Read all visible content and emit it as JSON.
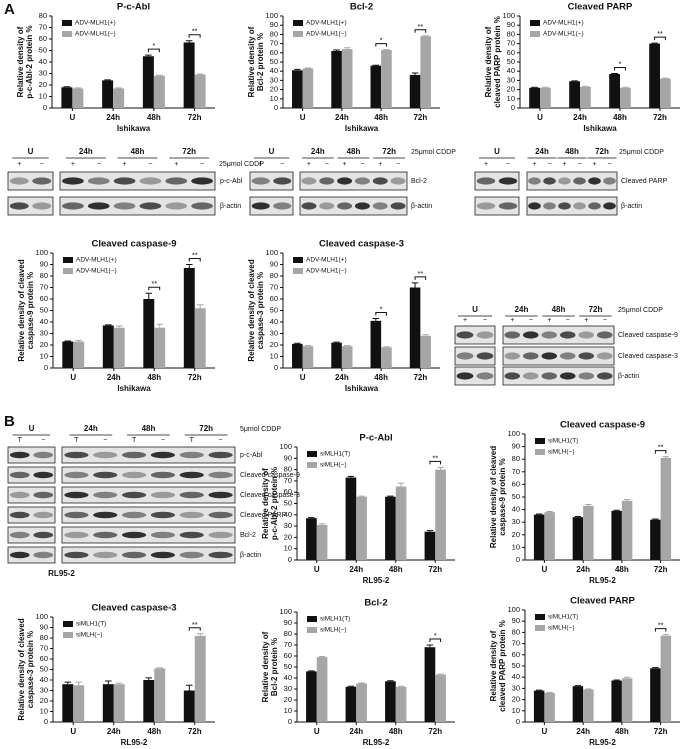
{
  "panels": [
    "A",
    "B"
  ],
  "chart_data": [
    {
      "type": "bar",
      "title": "P-c-Abl",
      "ylabel": [
        "Relative density of",
        "p-c-Abl-2 protein %"
      ],
      "xlabel": "Ishikawa",
      "categories": [
        "U",
        "24h",
        "48h",
        "72h"
      ],
      "legend": "upper left",
      "series": [
        {
          "name": "ADV-MLH1(+)",
          "color": "#111111",
          "values": [
            18,
            24,
            45,
            57
          ],
          "errors": [
            0.5,
            0.5,
            1,
            1.5
          ]
        },
        {
          "name": "ADV-MLH1(−)",
          "color": "#a6a6a6",
          "values": [
            17,
            17,
            28,
            29
          ],
          "errors": [
            0.5,
            0.5,
            0.5,
            0.5
          ]
        }
      ],
      "ylim": [
        0,
        80
      ],
      "yticks": [
        0,
        10,
        20,
        30,
        40,
        50,
        60,
        70,
        80
      ],
      "annotations": [
        {
          "x": "48h",
          "text": "*"
        },
        {
          "x": "72h",
          "text": "**"
        }
      ]
    },
    {
      "type": "bar",
      "title": "Bcl-2",
      "ylabel": [
        "Relative density of",
        "Bcl-2 protein %"
      ],
      "xlabel": "Ishikawa",
      "categories": [
        "U",
        "24h",
        "48h",
        "72h"
      ],
      "legend": "upper left",
      "series": [
        {
          "name": "ADV-MLH1(+)",
          "color": "#111111",
          "values": [
            41,
            62,
            46,
            36
          ],
          "errors": [
            1,
            1,
            0.5,
            2
          ]
        },
        {
          "name": "ADV-MLH1(−)",
          "color": "#a6a6a6",
          "values": [
            43,
            64,
            63,
            78
          ],
          "errors": [
            0.5,
            1.5,
            0.5,
            0.5
          ]
        }
      ],
      "ylim": [
        0,
        100
      ],
      "yticks": [
        0,
        10,
        20,
        30,
        40,
        50,
        60,
        70,
        80,
        90,
        100
      ],
      "annotations": [
        {
          "x": "48h",
          "text": "*"
        },
        {
          "x": "72h",
          "text": "**"
        }
      ]
    },
    {
      "type": "bar",
      "title": "Cleaved PARP",
      "ylabel": [
        "Relative density of",
        "cleaved PARP protein %"
      ],
      "xlabel": "Ishikawa",
      "categories": [
        "U",
        "24h",
        "48h",
        "72h"
      ],
      "legend": "upper left",
      "series": [
        {
          "name": "ADV-MLH1(+)",
          "color": "#111111",
          "values": [
            22,
            29,
            37,
            70
          ],
          "errors": [
            0.5,
            0.5,
            0.5,
            0.5
          ]
        },
        {
          "name": "ADV-MLH1(−)",
          "color": "#a6a6a6",
          "values": [
            22,
            23,
            22,
            32
          ],
          "errors": [
            0.5,
            0.5,
            0.5,
            0.5
          ]
        }
      ],
      "ylim": [
        0,
        100
      ],
      "yticks": [
        0,
        10,
        20,
        30,
        40,
        50,
        60,
        70,
        80,
        90,
        100
      ],
      "annotations": [
        {
          "x": "48h",
          "text": "*"
        },
        {
          "x": "72h",
          "text": "**"
        }
      ]
    },
    {
      "type": "bar",
      "title": "Cleaved caspase-9",
      "ylabel": [
        "Relative density of cleaved",
        "caspase-9 protein %"
      ],
      "xlabel": "Ishikawa",
      "categories": [
        "U",
        "24h",
        "48h",
        "72h"
      ],
      "legend": "upper left",
      "series": [
        {
          "name": "ADV-MLH1(+)",
          "color": "#111111",
          "values": [
            23,
            37,
            60,
            87
          ],
          "errors": [
            0.5,
            0.5,
            5,
            3
          ]
        },
        {
          "name": "ADV-MLH1(−)",
          "color": "#a6a6a6",
          "values": [
            23,
            35,
            35,
            52
          ],
          "errors": [
            1,
            1.5,
            3,
            3
          ]
        }
      ],
      "ylim": [
        0,
        100
      ],
      "yticks": [
        0,
        10,
        20,
        30,
        40,
        50,
        60,
        70,
        80,
        90,
        100
      ],
      "annotations": [
        {
          "x": "48h",
          "text": "**"
        },
        {
          "x": "72h",
          "text": "**"
        }
      ]
    },
    {
      "type": "bar",
      "title": "Cleaved caspase-3",
      "ylabel": [
        "Relative density of cleaved",
        "caspase-3 protein %"
      ],
      "xlabel": "Ishikawa",
      "categories": [
        "U",
        "24h",
        "48h",
        "72h"
      ],
      "legend": "upper left",
      "series": [
        {
          "name": "ADV-MLH1(+)",
          "color": "#111111",
          "values": [
            21,
            22,
            41,
            70
          ],
          "errors": [
            0.5,
            0.5,
            2,
            4
          ]
        },
        {
          "name": "ADV-MLH1(−)",
          "color": "#a6a6a6",
          "values": [
            19,
            19,
            18,
            28
          ],
          "errors": [
            0.5,
            0.5,
            0.5,
            1
          ]
        }
      ],
      "ylim": [
        0,
        100
      ],
      "yticks": [
        0,
        10,
        20,
        30,
        40,
        50,
        60,
        70,
        80,
        90,
        100
      ],
      "annotations": [
        {
          "x": "48h",
          "text": "*"
        },
        {
          "x": "72h",
          "text": "**"
        }
      ]
    },
    {
      "type": "bar",
      "title": "P-c-Abl",
      "ylabel": [
        "Relative density of",
        "p-c-Abl-2 protein %"
      ],
      "xlabel": "RL95-2",
      "categories": [
        "U",
        "24h",
        "48h",
        "72h"
      ],
      "legend": "upper left",
      "series": [
        {
          "name": "siMLH1(T)",
          "color": "#111111",
          "values": [
            37,
            73,
            56,
            25
          ],
          "errors": [
            0.5,
            1,
            0.5,
            1
          ]
        },
        {
          "name": "siMLH(−)",
          "color": "#a6a6a6",
          "values": [
            31,
            56,
            65,
            80
          ],
          "errors": [
            1,
            0.5,
            3,
            2
          ]
        }
      ],
      "ylim": [
        0,
        100
      ],
      "yticks": [
        0,
        10,
        20,
        30,
        40,
        50,
        60,
        70,
        80,
        90,
        100
      ],
      "annotations": [
        {
          "x": "72h",
          "text": "**"
        }
      ]
    },
    {
      "type": "bar",
      "title": "Cleaved caspase-9",
      "ylabel": [
        "Relative density of cleaved",
        "caspase-9 protein %"
      ],
      "xlabel": "RL95-2",
      "categories": [
        "U",
        "24h",
        "48h",
        "72h"
      ],
      "legend": "upper left",
      "series": [
        {
          "name": "siMLH1(T)",
          "color": "#111111",
          "values": [
            36,
            34,
            39,
            32
          ],
          "errors": [
            0.5,
            0.5,
            0.5,
            0.5
          ]
        },
        {
          "name": "siMLH(−)",
          "color": "#a6a6a6",
          "values": [
            38,
            43,
            47,
            81
          ],
          "errors": [
            0.5,
            1,
            1,
            1
          ]
        }
      ],
      "ylim": [
        0,
        100
      ],
      "yticks": [
        0,
        10,
        20,
        30,
        40,
        50,
        60,
        70,
        80,
        90,
        100
      ],
      "annotations": [
        {
          "x": "72h",
          "text": "**"
        }
      ]
    },
    {
      "type": "bar",
      "title": "Cleaved caspase-3",
      "ylabel": [
        "Relative density of cleaved",
        "caspase-3 protein %"
      ],
      "xlabel": "RL95-2",
      "categories": [
        "U",
        "24h",
        "48h",
        "72h"
      ],
      "legend": "upper left",
      "series": [
        {
          "name": "siMLH1(T)",
          "color": "#111111",
          "values": [
            36,
            36,
            40,
            30
          ],
          "errors": [
            2,
            3,
            2,
            5
          ]
        },
        {
          "name": "siMLH(−)",
          "color": "#a6a6a6",
          "values": [
            35,
            36,
            51,
            82
          ],
          "errors": [
            3,
            1,
            0.5,
            2
          ]
        }
      ],
      "ylim": [
        0,
        100
      ],
      "yticks": [
        0,
        10,
        20,
        30,
        40,
        50,
        60,
        70,
        80,
        90,
        100
      ],
      "annotations": [
        {
          "x": "72h",
          "text": "**"
        }
      ]
    },
    {
      "type": "bar",
      "title": "Bcl-2",
      "ylabel": [
        "Relative density of",
        "Bcl-2 protein %"
      ],
      "xlabel": "RL95-2",
      "categories": [
        "U",
        "24h",
        "48h",
        "72h"
      ],
      "legend": "upper left",
      "series": [
        {
          "name": "siMLH1(T)",
          "color": "#111111",
          "values": [
            46,
            32,
            37,
            68
          ],
          "errors": [
            0.5,
            0.5,
            0.5,
            2
          ]
        },
        {
          "name": "siMLH(−)",
          "color": "#a6a6a6",
          "values": [
            59,
            35,
            32,
            43
          ],
          "errors": [
            0.5,
            0.5,
            0.5,
            0.5
          ]
        }
      ],
      "ylim": [
        0,
        100
      ],
      "yticks": [
        0,
        10,
        20,
        30,
        40,
        50,
        60,
        70,
        80,
        90,
        100
      ],
      "annotations": [
        {
          "x": "72h",
          "text": "*"
        }
      ]
    },
    {
      "type": "bar",
      "title": "Cleaved PARP",
      "ylabel": [
        "Relative density of",
        "cleaved PARP protein %"
      ],
      "xlabel": "RL95-2",
      "categories": [
        "U",
        "24h",
        "48h",
        "72h"
      ],
      "legend": "upper left",
      "series": [
        {
          "name": "siMLH1(T)",
          "color": "#111111",
          "values": [
            28,
            32,
            37,
            48
          ],
          "errors": [
            0.5,
            0.5,
            0.5,
            0.5
          ]
        },
        {
          "name": "siMLH(−)",
          "color": "#a6a6a6",
          "values": [
            26,
            29,
            39,
            77
          ],
          "errors": [
            0.5,
            0.5,
            1,
            1
          ]
        }
      ],
      "ylim": [
        0,
        100
      ],
      "yticks": [
        0,
        10,
        20,
        30,
        40,
        50,
        60,
        70,
        80,
        90,
        100
      ],
      "annotations": [
        {
          "x": "72h",
          "text": "**"
        }
      ]
    }
  ],
  "blots": [
    {
      "conditions": [
        "U",
        "24h",
        "48h",
        "72h"
      ],
      "treatment": "25μmol CDDP",
      "lanes": [
        "+",
        "−",
        "+",
        "−",
        "+",
        "−",
        "+",
        "−"
      ],
      "proteins": [
        "p-c-Abl",
        "β-actin"
      ]
    },
    {
      "conditions": [
        "U",
        "24h",
        "48h",
        "72h"
      ],
      "treatment": "25μmol CDDP",
      "lanes": [
        "+",
        "−",
        "+",
        "−",
        "+",
        "−",
        "+",
        "−"
      ],
      "proteins": [
        "Bcl-2",
        "β-actin"
      ]
    },
    {
      "conditions": [
        "U",
        "24h",
        "48h",
        "72h"
      ],
      "treatment": "25μmol CDDP",
      "lanes": [
        "+",
        "−",
        "+",
        "−",
        "+",
        "−",
        "+",
        "−"
      ],
      "proteins": [
        "Cleaved PARP",
        "β-actin"
      ]
    },
    {
      "conditions": [
        "U",
        "24h",
        "48h",
        "72h"
      ],
      "treatment": "25μmol CDDP",
      "lanes": [
        "+",
        "−",
        "+",
        "−",
        "+",
        "−",
        "+",
        "−"
      ],
      "proteins": [
        "Cleaved caspase-9",
        "Cleaved caspase-3",
        "β-actin"
      ]
    },
    {
      "conditions": [
        "U",
        "24h",
        "48h",
        "72h"
      ],
      "treatment": "5μmol CDDP",
      "lanes": [
        "T",
        "−",
        "T",
        "−",
        "T",
        "−",
        "T",
        "−"
      ],
      "proteins": [
        "p-c-Abl",
        "Cleaved caspase-9",
        "Cleaved caspase-3",
        "Cleaved PARP",
        "Bcl-2",
        "β-actin"
      ],
      "cell_line": "RL95-2"
    }
  ]
}
